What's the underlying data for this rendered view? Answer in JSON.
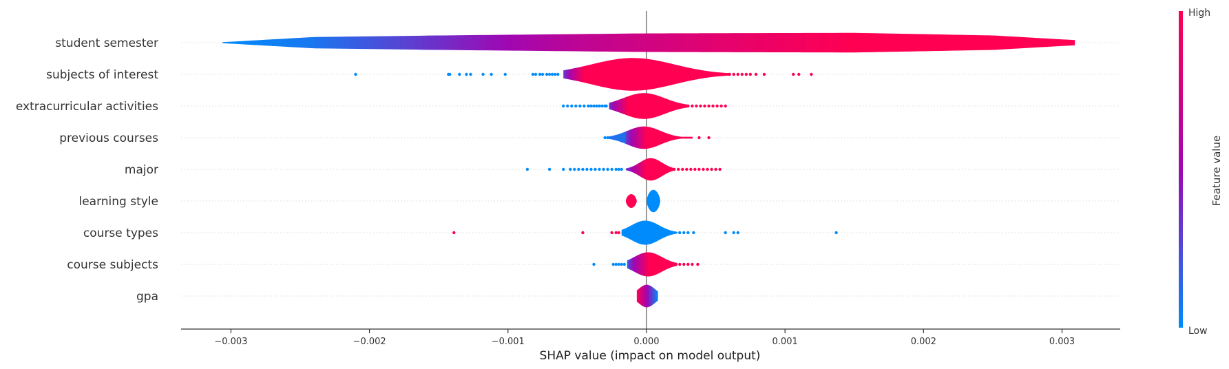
{
  "chart_data": {
    "type": "violin",
    "xlabel": "SHAP value (impact on model output)",
    "xlim": [
      -0.00336,
      0.00342
    ],
    "x_ticks": [
      -0.003,
      -0.002,
      -0.001,
      0.0,
      0.001,
      0.002,
      0.003
    ],
    "x_tick_labels": [
      "−0.003",
      "−0.002",
      "−0.001",
      "0.000",
      "0.001",
      "0.002",
      "0.003"
    ],
    "zero_line": 0.0,
    "colorbar": {
      "title": "Feature value",
      "high_label": "High",
      "low_label": "Low",
      "low_color": "#008bfb",
      "high_color": "#ff0052"
    },
    "features": [
      {
        "name": "student semester",
        "shape": "band",
        "range": [
          -0.00306,
          0.00309
        ],
        "color_gradient": [
          [
            -0.00306,
            0.0
          ],
          [
            -0.0024,
            0.08
          ],
          [
            -0.0015,
            0.35
          ],
          [
            -0.0005,
            0.65
          ],
          [
            0.0005,
            0.85
          ],
          [
            0.0015,
            1.0
          ],
          [
            0.00309,
            1.0
          ]
        ],
        "width_profile": [
          [
            -0.00306,
            0.05
          ],
          [
            -0.0024,
            0.55
          ],
          [
            -0.0015,
            0.7
          ],
          [
            0.0,
            0.9
          ],
          [
            0.0015,
            0.95
          ],
          [
            0.0025,
            0.7
          ],
          [
            0.00309,
            0.25
          ]
        ]
      },
      {
        "name": "subjects of interest",
        "shape": "violin",
        "body_range": [
          -0.0006,
          0.0006
        ],
        "center": -0.0001,
        "peak": 0.95,
        "width_sd": 0.0003,
        "color_break": -0.0006,
        "low_points": [
          -0.0021,
          -0.00143,
          -0.00142,
          -0.00135,
          -0.0013,
          -0.00127,
          -0.00118,
          -0.00112,
          -0.00102,
          -0.00082,
          -0.0008,
          -0.00077,
          -0.00075,
          -0.00072,
          -0.0007,
          -0.00068,
          -0.00066,
          -0.00064
        ],
        "high_points": [
          0.0006,
          0.00063,
          0.00066,
          0.00069,
          0.00072,
          0.00075,
          0.00079,
          0.00085,
          0.00106,
          0.0011,
          0.00119
        ]
      },
      {
        "name": "extracurricular activities",
        "shape": "violin",
        "body_range": [
          -0.00027,
          0.0003
        ],
        "center": -2e-05,
        "peak": 0.75,
        "width_sd": 0.00015,
        "color_break": -0.00028,
        "low_points": [
          -0.0006,
          -0.00057,
          -0.00054,
          -0.00051,
          -0.00048,
          -0.00045,
          -0.00042,
          -0.0004,
          -0.00038,
          -0.00036,
          -0.00034,
          -0.00032,
          -0.0003,
          -0.00029
        ],
        "high_points": [
          0.0003,
          0.00033,
          0.00036,
          0.00039,
          0.00042,
          0.00045,
          0.00048,
          0.00051,
          0.00054,
          0.00057
        ]
      },
      {
        "name": "previous courses",
        "shape": "violin",
        "body_range": [
          -0.00028,
          0.00033
        ],
        "center": -2e-05,
        "peak": 0.65,
        "width_sd": 0.00012,
        "color_break": -0.00015,
        "low_points": [
          -0.0003,
          -0.00028
        ],
        "high_points": [
          0.00038,
          0.00045
        ]
      },
      {
        "name": "major",
        "shape": "violin",
        "body_range": [
          -0.00015,
          0.0002
        ],
        "center": 3e-05,
        "peak": 0.65,
        "width_sd": 8e-05,
        "color_break": -0.00015,
        "low_points": [
          -0.00086,
          -0.0007,
          -0.0006,
          -0.00055,
          -0.00052,
          -0.00049,
          -0.00046,
          -0.00043,
          -0.0004,
          -0.00037,
          -0.00034,
          -0.00031,
          -0.00028,
          -0.00025,
          -0.00022,
          -0.0002,
          -0.00018
        ],
        "high_points": [
          0.0002,
          0.00023,
          0.00026,
          0.00029,
          0.00032,
          0.00035,
          0.00038,
          0.00041,
          0.00044,
          0.00047,
          0.0005,
          0.00053
        ]
      },
      {
        "name": "learning style",
        "shape": "two-violins",
        "blobs": [
          {
            "center": -0.00011,
            "half_width": 4e-05,
            "peak": 0.4,
            "color": "#ff0052"
          },
          {
            "center": 5e-05,
            "half_width": 5e-05,
            "peak": 0.65,
            "color": "#008bfb"
          }
        ],
        "low_points": [],
        "high_points": []
      },
      {
        "name": "course types",
        "shape": "violin",
        "body_range": [
          -0.00018,
          0.00022
        ],
        "center": -1e-05,
        "peak": 0.7,
        "width_sd": 0.0001,
        "color_break": 99,
        "base_color": "#008bfb",
        "extra_points": [
          {
            "x": -0.00139,
            "c": "#ff0052"
          },
          {
            "x": -0.00046,
            "c": "#ff0052"
          },
          {
            "x": -0.00025,
            "c": "#ff0052"
          },
          {
            "x": -0.00022,
            "c": "#ff0052"
          },
          {
            "x": -0.0002,
            "c": "#ff0052"
          },
          {
            "x": 0.00024,
            "c": "#008bfb"
          },
          {
            "x": 0.00027,
            "c": "#008bfb"
          },
          {
            "x": 0.0003,
            "c": "#008bfb"
          },
          {
            "x": 0.00034,
            "c": "#008bfb"
          },
          {
            "x": 0.00057,
            "c": "#008bfb"
          },
          {
            "x": 0.00063,
            "c": "#008bfb"
          },
          {
            "x": 0.00066,
            "c": "#008bfb"
          },
          {
            "x": 0.00137,
            "c": "#008bfb"
          }
        ]
      },
      {
        "name": "course subjects",
        "shape": "violin",
        "body_range": [
          -0.00014,
          0.00022
        ],
        "center": 1e-05,
        "peak": 0.7,
        "width_sd": 0.0001,
        "color_break": -0.00013,
        "low_points": [
          -0.00038,
          -0.00024,
          -0.00022,
          -0.0002,
          -0.00018,
          -0.00016
        ],
        "high_points": [
          0.00024,
          0.00027,
          0.0003,
          0.00033,
          0.00037
        ]
      },
      {
        "name": "gpa",
        "shape": "violin",
        "body_range": [
          -7e-05,
          8e-05
        ],
        "center": 0.0,
        "peak": 0.65,
        "width_sd": 6e-05,
        "gradient": "high-to-low",
        "low_points": [],
        "high_points": []
      }
    ]
  }
}
